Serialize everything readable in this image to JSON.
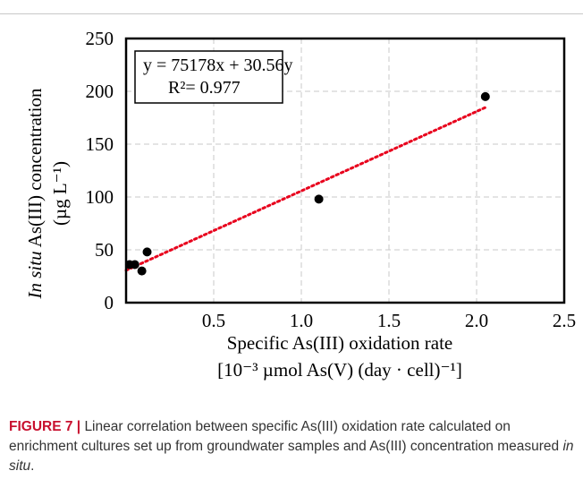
{
  "chart_data": {
    "type": "scatter",
    "ylabel_italic": "In situ",
    "ylabel_rest": " As(III) concentration",
    "ylabel_unit": "(µg L⁻¹)",
    "xlabel_line1": "Specific As(III) oxidation rate",
    "xlabel_line2": "[10⁻³ µmol As(V) (day · cell)⁻¹]",
    "xlim": [
      0,
      2.5
    ],
    "ylim": [
      0,
      250
    ],
    "x_ticks": [
      {
        "value": 0.5,
        "label": "0.5"
      },
      {
        "value": 1.0,
        "label": "1.0"
      },
      {
        "value": 1.5,
        "label": "1.5"
      },
      {
        "value": 2.0,
        "label": "2.0"
      },
      {
        "value": 2.5,
        "label": "2.5"
      }
    ],
    "y_ticks": [
      {
        "value": 0,
        "label": "0"
      },
      {
        "value": 50,
        "label": "50"
      },
      {
        "value": 100,
        "label": "100"
      },
      {
        "value": 150,
        "label": "150"
      },
      {
        "value": 200,
        "label": "200"
      },
      {
        "value": 250,
        "label": "250"
      }
    ],
    "grid": true,
    "points": [
      {
        "x": 0.02,
        "y": 36
      },
      {
        "x": 0.05,
        "y": 36
      },
      {
        "x": 0.09,
        "y": 30
      },
      {
        "x": 0.12,
        "y": 48
      },
      {
        "x": 1.1,
        "y": 98
      },
      {
        "x": 2.05,
        "y": 195
      }
    ],
    "trendline": {
      "x_start": 0.0,
      "y_start": 30.56,
      "x_end": 2.05,
      "y_end": 184.7,
      "color": "#e8001c"
    },
    "annotation": {
      "equation": "y = 75178x + 30.56y",
      "r_squared": "R²= 0.977"
    },
    "point_color": "#000000",
    "grid_color": "#c8c8c8"
  },
  "caption": {
    "label": "FIGURE 7",
    "separator": " | ",
    "text_part1": "Linear correlation between specific As(III) oxidation rate calculated on enrichment cultures set up from groundwater samples and As(III) concentration measured ",
    "text_italic": "in situ",
    "text_end": "."
  }
}
